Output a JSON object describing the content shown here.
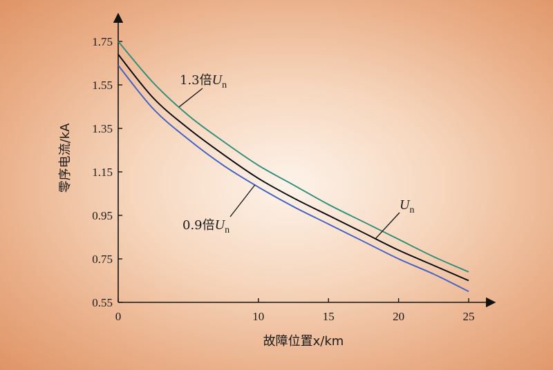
{
  "chart_data": {
    "type": "line",
    "xlabel": "故障位置x/km",
    "ylabel": "零序电流/kA",
    "xlim": [
      0,
      25
    ],
    "ylim": [
      0.55,
      1.75
    ],
    "x_ticks": [
      "0",
      "10",
      "15",
      "20",
      "25"
    ],
    "y_ticks": [
      "0.55",
      "0.75",
      "0.95",
      "1.15",
      "1.35",
      "1.55",
      "1.75"
    ],
    "grid": false,
    "series": [
      {
        "name": "1.3倍Un",
        "color": "#2e8b78",
        "x": [
          0,
          2.5,
          5,
          7.5,
          10,
          12.5,
          15,
          17.5,
          20,
          22.5,
          25
        ],
        "y": [
          1.75,
          1.56,
          1.41,
          1.29,
          1.18,
          1.09,
          1.0,
          0.92,
          0.84,
          0.76,
          0.69
        ]
      },
      {
        "name": "Un",
        "color": "#000000",
        "x": [
          0,
          2.5,
          5,
          7.5,
          10,
          12.5,
          15,
          17.5,
          20,
          22.5,
          25
        ],
        "y": [
          1.69,
          1.49,
          1.35,
          1.23,
          1.12,
          1.03,
          0.95,
          0.87,
          0.79,
          0.72,
          0.65
        ]
      },
      {
        "name": "0.9倍Un",
        "color": "#3f5fc4",
        "x": [
          0,
          2.5,
          5,
          7.5,
          10,
          12.5,
          15,
          17.5,
          20,
          22.5,
          25
        ],
        "y": [
          1.64,
          1.44,
          1.3,
          1.18,
          1.08,
          0.99,
          0.91,
          0.83,
          0.75,
          0.68,
          0.6
        ]
      }
    ],
    "annotations": [
      {
        "prefix": "1.3倍",
        "var": "U",
        "sub": "n",
        "series": "1.3倍Un"
      },
      {
        "prefix": "",
        "var": "U",
        "sub": "n",
        "series": "Un"
      },
      {
        "prefix": "0.9倍",
        "var": "U",
        "sub": "n",
        "series": "0.9倍Un"
      }
    ]
  }
}
